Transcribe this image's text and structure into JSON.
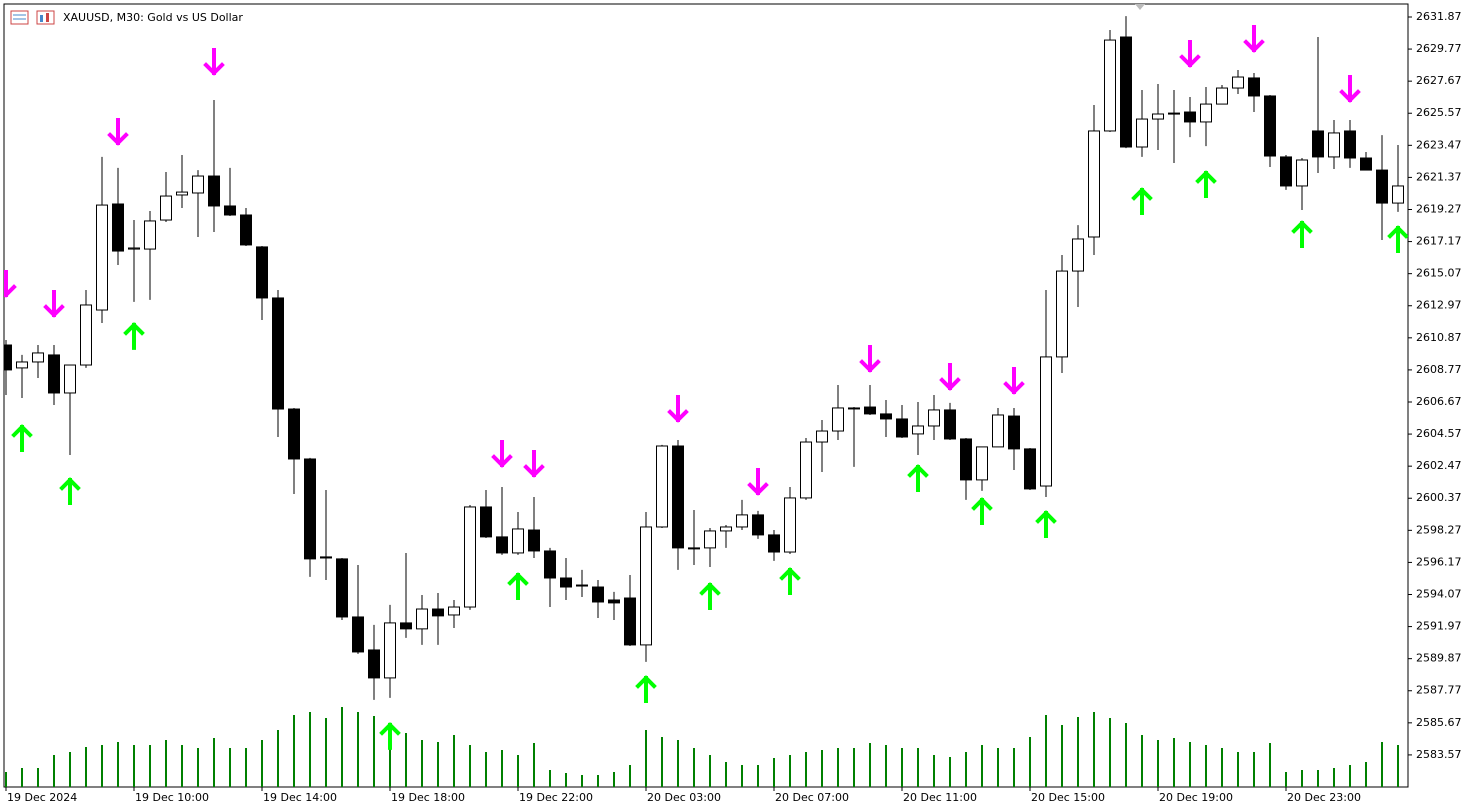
{
  "chart_data": {
    "type": "candlestick",
    "title": "XAUUSD, M30:  Gold vs US Dollar",
    "categories": [
      "19 Dec 2024",
      null,
      null,
      null,
      null,
      null,
      null,
      null,
      "19 Dec 10:00",
      null,
      null,
      null,
      null,
      null,
      null,
      null,
      "19 Dec 14:00",
      null,
      null,
      null,
      null,
      null,
      null,
      null,
      "19 Dec 18:00",
      null,
      null,
      null,
      null,
      null,
      null,
      null,
      "19 Dec 22:00",
      null,
      null,
      null,
      null,
      null,
      null,
      null,
      "20 Dec 03:00",
      null,
      null,
      null,
      null,
      null,
      null,
      null,
      "20 Dec 07:00",
      null,
      null,
      null,
      null,
      null,
      null,
      null,
      "20 Dec 11:00",
      null,
      null,
      null,
      null,
      null,
      null,
      null,
      "20 Dec 15:00",
      null,
      null,
      null,
      null,
      null,
      null,
      null,
      "20 Dec 19:00",
      null,
      null,
      null,
      null,
      null,
      null,
      null,
      "20 Dec 23:00",
      null,
      null,
      null,
      null,
      null,
      null,
      null
    ],
    "open": [
      2610.4,
      2608.9,
      2609.29,
      2609.75,
      2607.26,
      2609.09,
      2612.69,
      2619.63,
      2616.68,
      2616.68,
      2618.58,
      2620.22,
      2620.35,
      2621.46,
      2619.5,
      2618.91,
      2616.82,
      2613.48,
      2606.21,
      2602.94,
      2596.53,
      2596.4,
      2592.6,
      2590.44,
      2588.61,
      2592.21,
      2591.82,
      2593.12,
      2592.73,
      2593.25,
      2599.8,
      2597.84,
      2596.79,
      2598.29,
      2596.92,
      2595.15,
      2594.69,
      2594.56,
      2593.71,
      2593.84,
      2590.77,
      2598.49,
      2603.79,
      2597.12,
      2597.12,
      2598.23,
      2598.49,
      2599.28,
      2597.97,
      2596.85,
      2600.39,
      2604.05,
      2604.77,
      2606.28,
      2606.34,
      2605.89,
      2605.56,
      2604.58,
      2605.1,
      2606.15,
      2604.25,
      2601.57,
      2603.73,
      2605.75,
      2603.6,
      2601.17,
      2609.62,
      2615.24,
      2617.47,
      2624.41,
      2630.56,
      2623.36,
      2625.19,
      2625.58,
      2625.65,
      2625.0,
      2626.17,
      2627.22,
      2627.88,
      2626.7,
      2622.71,
      2620.81,
      2624.41,
      2622.71,
      2624.41,
      2622.64,
      2621.85,
      2619.69
    ],
    "high": [
      2610.73,
      2609.75,
      2610.4,
      2610.4,
      2609.09,
      2614.0,
      2622.71,
      2621.99,
      2618.58,
      2619.17,
      2621.72,
      2622.84,
      2621.85,
      2626.44,
      2621.99,
      2619.37,
      2616.88,
      2614.0,
      2606.28,
      2603.01,
      2600.91,
      2596.46,
      2596.0,
      2592.08,
      2593.39,
      2596.79,
      2594.04,
      2594.17,
      2593.71,
      2599.93,
      2600.91,
      2601.11,
      2599.47,
      2600.45,
      2597.12,
      2596.46,
      2595.68,
      2595.02,
      2594.24,
      2595.35,
      2599.47,
      2603.86,
      2604.18,
      2599.6,
      2598.42,
      2598.62,
      2600.26,
      2599.54,
      2598.29,
      2601.11,
      2604.31,
      2605.49,
      2607.78,
      2606.34,
      2607.78,
      2606.8,
      2606.47,
      2606.67,
      2607.13,
      2606.61,
      2604.31,
      2603.73,
      2606.28,
      2606.28,
      2603.66,
      2614.0,
      2616.29,
      2618.25,
      2626.11,
      2631.02,
      2631.93,
      2627.09,
      2627.48,
      2627.09,
      2626.63,
      2627.29,
      2627.42,
      2628.4,
      2628.2,
      2626.76,
      2622.84,
      2622.64,
      2630.56,
      2625.13,
      2625.13,
      2623.03,
      2624.14,
      2623.49
    ],
    "low": [
      2607.13,
      2606.93,
      2608.24,
      2606.47,
      2603.2,
      2608.9,
      2611.84,
      2615.64,
      2613.22,
      2613.35,
      2618.45,
      2619.37,
      2617.47,
      2617.8,
      2618.84,
      2616.88,
      2612.04,
      2604.38,
      2600.65,
      2595.22,
      2595.02,
      2592.4,
      2590.18,
      2587.17,
      2587.3,
      2591.23,
      2590.77,
      2590.77,
      2591.88,
      2593.06,
      2597.77,
      2596.66,
      2596.66,
      2596.46,
      2593.25,
      2593.71,
      2593.91,
      2592.53,
      2592.4,
      2590.7,
      2589.66,
      2598.42,
      2595.68,
      2596.0,
      2595.87,
      2597.12,
      2598.29,
      2597.71,
      2596.27,
      2596.72,
      2600.26,
      2602.09,
      2604.18,
      2602.42,
      2605.82,
      2604.38,
      2604.31,
      2603.2,
      2604.18,
      2604.18,
      2600.26,
      2600.85,
      2603.73,
      2602.22,
      2600.91,
      2600.45,
      2608.57,
      2612.89,
      2616.29,
      2624.34,
      2623.29,
      2622.71,
      2623.16,
      2622.31,
      2624.01,
      2623.42,
      2626.17,
      2626.83,
      2625.65,
      2622.05,
      2620.55,
      2619.24,
      2621.66,
      2621.92,
      2621.99,
      2621.85,
      2617.27,
      2619.11
    ],
    "close": [
      2608.77,
      2609.29,
      2609.88,
      2607.26,
      2609.09,
      2613.02,
      2619.56,
      2616.55,
      2616.75,
      2618.52,
      2620.15,
      2620.41,
      2621.46,
      2619.5,
      2618.91,
      2616.95,
      2613.48,
      2606.21,
      2602.94,
      2596.4,
      2596.46,
      2592.6,
      2590.31,
      2588.61,
      2592.21,
      2591.82,
      2593.12,
      2592.67,
      2593.25,
      2599.8,
      2597.84,
      2596.79,
      2598.36,
      2596.92,
      2595.15,
      2594.56,
      2594.69,
      2593.58,
      2593.52,
      2590.77,
      2598.49,
      2603.79,
      2597.12,
      2597.12,
      2598.23,
      2598.49,
      2599.28,
      2597.97,
      2596.85,
      2600.39,
      2604.05,
      2604.77,
      2606.28,
      2606.28,
      2605.89,
      2605.56,
      2604.38,
      2605.1,
      2606.15,
      2604.25,
      2601.57,
      2603.73,
      2605.82,
      2603.6,
      2600.98,
      2609.62,
      2615.24,
      2617.34,
      2624.41,
      2630.36,
      2623.36,
      2625.19,
      2625.52,
      2625.58,
      2625.0,
      2626.17,
      2627.22,
      2627.94,
      2626.7,
      2622.77,
      2620.81,
      2622.51,
      2622.71,
      2624.28,
      2622.64,
      2621.85,
      2619.69,
      2620.81
    ],
    "down_arrows": {
      "color": "#ff00ff",
      "values": [
        2614.33,
        null,
        null,
        2613.02,
        null,
        null,
        null,
        2624.28,
        null,
        null,
        null,
        null,
        null,
        2628.86,
        null,
        null,
        null,
        null,
        null,
        null,
        null,
        null,
        null,
        null,
        null,
        null,
        null,
        null,
        null,
        null,
        null,
        2603.2,
        null,
        2602.55,
        null,
        null,
        null,
        null,
        null,
        null,
        null,
        null,
        2606.15,
        null,
        null,
        null,
        null,
        2601.37,
        null,
        null,
        null,
        null,
        null,
        null,
        2609.42,
        null,
        null,
        null,
        null,
        2608.24,
        null,
        null,
        null,
        2607.98,
        null,
        null,
        null,
        null,
        null,
        null,
        null,
        null,
        null,
        null,
        2629.38,
        null,
        null,
        null,
        2630.36,
        null,
        null,
        null,
        null,
        null,
        2627.09,
        null,
        null,
        null
      ]
    },
    "up_arrows": {
      "color": "#00ff00",
      "values": [
        null,
        2604.38,
        null,
        null,
        2600.91,
        null,
        null,
        null,
        2611.06,
        null,
        null,
        null,
        null,
        null,
        null,
        null,
        null,
        null,
        null,
        null,
        null,
        null,
        null,
        null,
        2584.88,
        null,
        null,
        null,
        null,
        null,
        null,
        null,
        2594.69,
        null,
        null,
        null,
        null,
        null,
        null,
        null,
        2587.95,
        null,
        null,
        null,
        2594.04,
        null,
        null,
        null,
        null,
        2595.02,
        null,
        null,
        null,
        null,
        null,
        null,
        null,
        2601.76,
        null,
        null,
        null,
        2599.6,
        null,
        null,
        null,
        2598.75,
        null,
        null,
        null,
        null,
        null,
        2619.89,
        null,
        null,
        null,
        2621.0,
        null,
        null,
        null,
        null,
        null,
        2617.73,
        null,
        null,
        null,
        null,
        null,
        2617.4
      ]
    },
    "volume": {
      "color": "#008000",
      "values": [
        15,
        19,
        19,
        32,
        35,
        40,
        42,
        45,
        42,
        42,
        47,
        42,
        39,
        49,
        39,
        39,
        47,
        57,
        72,
        75,
        69,
        80,
        75,
        71,
        62,
        54,
        47,
        45,
        52,
        42,
        35,
        37,
        32,
        44,
        17,
        14,
        12,
        12,
        15,
        22,
        57,
        50,
        47,
        39,
        32,
        25,
        22,
        22,
        29,
        32,
        35,
        37,
        39,
        39,
        44,
        42,
        39,
        39,
        32,
        30,
        35,
        42,
        39,
        39,
        50,
        72,
        62,
        70,
        75,
        69,
        64,
        52,
        47,
        49,
        45,
        42,
        39,
        35,
        35,
        44,
        15,
        17,
        17,
        19,
        22,
        25,
        45,
        42
      ]
    },
    "bull_color": "#ffffff",
    "bear_color": "#000000",
    "ylim": [
      2581.47,
      2632.72
    ],
    "yticks": [
      2631.87,
      2629.77,
      2627.67,
      2625.57,
      2623.47,
      2621.37,
      2619.27,
      2617.17,
      2615.07,
      2612.97,
      2610.87,
      2608.77,
      2606.67,
      2604.57,
      2602.47,
      2600.37,
      2598.27,
      2596.17,
      2594.07,
      2591.97,
      2589.87,
      2587.77,
      2585.67,
      2583.57
    ]
  }
}
